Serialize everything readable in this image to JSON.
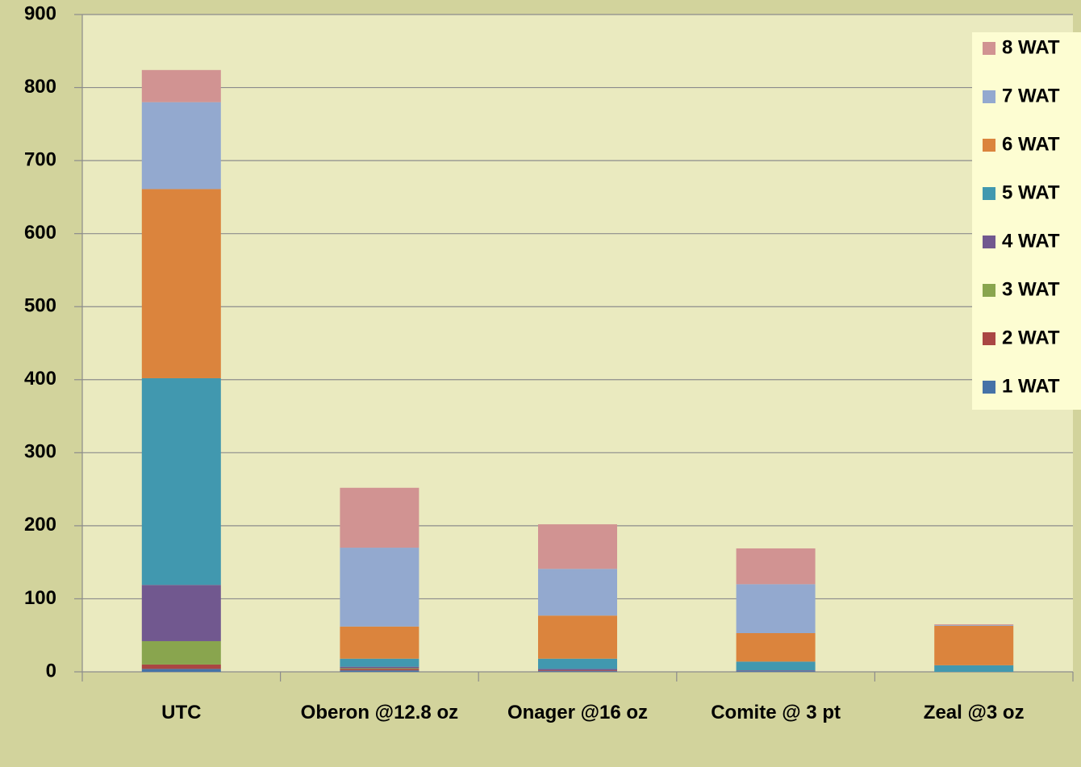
{
  "chart_data": {
    "type": "stacked_bar",
    "categories": [
      "UTC",
      "Oberon @12.8 oz",
      "Onager @16 oz",
      "Comite @ 3 pt",
      "Zeal  @3 oz"
    ],
    "series": [
      {
        "name": "1 WAT",
        "color": "#4572a7",
        "values": [
          4,
          2,
          1,
          1,
          0
        ]
      },
      {
        "name": "2 WAT",
        "color": "#aa4643",
        "values": [
          6,
          2,
          1,
          0,
          0
        ]
      },
      {
        "name": "3 WAT",
        "color": "#89a54e",
        "values": [
          32,
          1,
          0,
          0,
          0
        ]
      },
      {
        "name": "4 WAT",
        "color": "#71588f",
        "values": [
          77,
          2,
          2,
          1,
          0
        ]
      },
      {
        "name": "5 WAT",
        "color": "#4198af",
        "values": [
          283,
          11,
          14,
          12,
          9
        ]
      },
      {
        "name": "6 WAT",
        "color": "#db843d",
        "values": [
          259,
          44,
          59,
          39,
          54
        ]
      },
      {
        "name": "7 WAT",
        "color": "#93a9cf",
        "values": [
          119,
          108,
          64,
          67,
          1
        ]
      },
      {
        "name": "8 WAT",
        "color": "#d19392",
        "values": [
          44,
          82,
          61,
          49,
          1
        ]
      }
    ],
    "ylim": [
      0,
      900
    ],
    "yticks": [
      0,
      100,
      200,
      300,
      400,
      500,
      600,
      700,
      800,
      900
    ],
    "grid": true,
    "legend": "right"
  }
}
